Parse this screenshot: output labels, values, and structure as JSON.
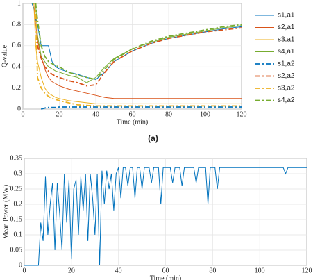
{
  "chart_data": [
    {
      "type": "line",
      "ylabel": "Q-value",
      "xlabel": "Time (min)",
      "caption": "(a)",
      "xlim": [
        0,
        120
      ],
      "xticks": [
        0,
        20,
        40,
        60,
        80,
        100,
        120
      ],
      "ylim": [
        0,
        1
      ],
      "yticks": [
        0,
        0.2,
        0.4,
        0.6,
        0.8,
        1
      ],
      "legend": "right",
      "x": [
        0,
        5,
        6,
        7,
        8,
        10,
        12,
        14,
        16,
        18,
        20,
        25,
        30,
        35,
        40,
        45,
        50,
        60,
        70,
        80,
        90,
        100,
        110,
        120
      ],
      "series": [
        {
          "name": "s1,a1",
          "color": "#0072BD",
          "style": "solid",
          "values": [
            null,
            1,
            0.95,
            0.85,
            0.8,
            0.6,
            0.6,
            0.6,
            0.45,
            0.4,
            0.38,
            0.35,
            0.33,
            0.3,
            0.28,
            0.35,
            0.45,
            0.55,
            0.62,
            0.67,
            0.7,
            0.73,
            0.76,
            0.78
          ]
        },
        {
          "name": "s2,a1",
          "color": "#D95319",
          "style": "solid",
          "values": [
            null,
            null,
            1,
            0.8,
            0.65,
            0.5,
            0.38,
            0.3,
            0.26,
            0.24,
            0.22,
            0.19,
            0.17,
            0.15,
            0.13,
            0.11,
            0.1,
            0.1,
            0.1,
            0.1,
            0.1,
            0.1,
            0.1,
            0.1
          ]
        },
        {
          "name": "s3,a1",
          "color": "#EDB120",
          "style": "solid",
          "values": [
            null,
            null,
            1,
            0.6,
            0.45,
            0.3,
            0.2,
            0.15,
            0.13,
            0.11,
            0.1,
            0.08,
            0.07,
            0.06,
            0.05,
            0.05,
            0.05,
            0.05,
            0.05,
            0.05,
            0.05,
            0.05,
            0.05,
            0.05
          ]
        },
        {
          "name": "s4,a1",
          "color": "#77AC30",
          "style": "solid",
          "values": [
            null,
            1,
            1,
            1,
            0.7,
            0.5,
            0.45,
            0.4,
            0.38,
            0.36,
            0.35,
            0.32,
            0.3,
            0.25,
            0.3,
            0.4,
            0.48,
            0.57,
            0.63,
            0.68,
            0.71,
            0.74,
            0.77,
            0.79
          ]
        },
        {
          "name": "s1,a2",
          "color": "#0072BD",
          "style": "dashdot",
          "values": [
            null,
            null,
            null,
            null,
            null,
            0,
            0.01,
            0.015,
            0.015,
            0.015,
            0.02,
            0.02,
            0.02,
            0.02,
            0.02,
            0.02,
            0.02,
            0.02,
            0.02,
            0.02,
            0.02,
            0.02,
            0.02,
            0.02
          ]
        },
        {
          "name": "s2,a2",
          "color": "#D95319",
          "style": "dashdot",
          "values": [
            null,
            null,
            null,
            1,
            0.6,
            0.48,
            0.4,
            0.36,
            0.33,
            0.31,
            0.3,
            0.27,
            0.25,
            0.22,
            0.23,
            0.35,
            0.45,
            0.55,
            0.62,
            0.67,
            0.7,
            0.73,
            0.75,
            0.77
          ]
        },
        {
          "name": "s3,a2",
          "color": "#EDB120",
          "style": "dashdot",
          "values": [
            null,
            null,
            null,
            1,
            0.3,
            0.2,
            0.15,
            0.12,
            0.1,
            0.09,
            0.08,
            0.06,
            0.04,
            0.035,
            0.03,
            0.03,
            0.03,
            0.03,
            0.03,
            0.03,
            0.03,
            0.03,
            0.03,
            0.03
          ]
        },
        {
          "name": "s4,a2",
          "color": "#77AC30",
          "style": "dashdot",
          "values": [
            null,
            null,
            null,
            1,
            0.85,
            0.6,
            0.5,
            0.45,
            0.43,
            0.41,
            0.4,
            0.35,
            0.32,
            0.3,
            0.28,
            0.38,
            0.47,
            0.57,
            0.64,
            0.69,
            0.72,
            0.75,
            0.78,
            0.8
          ]
        }
      ]
    },
    {
      "type": "line",
      "ylabel": "Mean Power (MW)",
      "xlabel": "Time (min)",
      "xlim": [
        0,
        120
      ],
      "xticks": [
        0,
        20,
        40,
        60,
        80,
        100,
        120
      ],
      "ylim": [
        0,
        0.35
      ],
      "yticks": [
        0,
        0.05,
        0.1,
        0.15,
        0.2,
        0.25,
        0.3,
        0.35
      ],
      "x": [
        0,
        5,
        6,
        7,
        8,
        9,
        10,
        11,
        12,
        13,
        14,
        15,
        16,
        17,
        18,
        19,
        20,
        21,
        22,
        23,
        24,
        25,
        26,
        27,
        28,
        29,
        30,
        31,
        32,
        33,
        34,
        35,
        36,
        37,
        38,
        39,
        40,
        41,
        42,
        43,
        44,
        45,
        46,
        47,
        48,
        49,
        50,
        51,
        53,
        54,
        55,
        57,
        58,
        59,
        62,
        63,
        64,
        66,
        67,
        68,
        72,
        73,
        74,
        77,
        78,
        79,
        81,
        82,
        83,
        110,
        111,
        112,
        120
      ],
      "series": [
        {
          "name": "Mean Power",
          "color": "#0072BD",
          "style": "solid",
          "values": [
            0,
            0,
            0,
            0.14,
            0.08,
            0.29,
            0.1,
            0.2,
            0.27,
            0.05,
            0.27,
            0.17,
            0.05,
            0.3,
            0.14,
            0.28,
            0.02,
            0.25,
            0.28,
            0.1,
            0.29,
            0.18,
            0.3,
            0.08,
            0.3,
            0.22,
            0.1,
            0.3,
            0,
            0.31,
            0.2,
            0.31,
            0.25,
            0.3,
            0.18,
            0.3,
            0.32,
            0.22,
            0.32,
            0.32,
            0.26,
            0.32,
            0.32,
            0.22,
            0.32,
            0.32,
            0.25,
            0.32,
            0.32,
            0.27,
            0.32,
            0.32,
            0.2,
            0.32,
            0.32,
            0.27,
            0.32,
            0.32,
            0.26,
            0.32,
            0.32,
            0.27,
            0.32,
            0.32,
            0.2,
            0.32,
            0.32,
            0.25,
            0.32,
            0.32,
            0.3,
            0.32,
            0.32
          ]
        }
      ]
    }
  ]
}
